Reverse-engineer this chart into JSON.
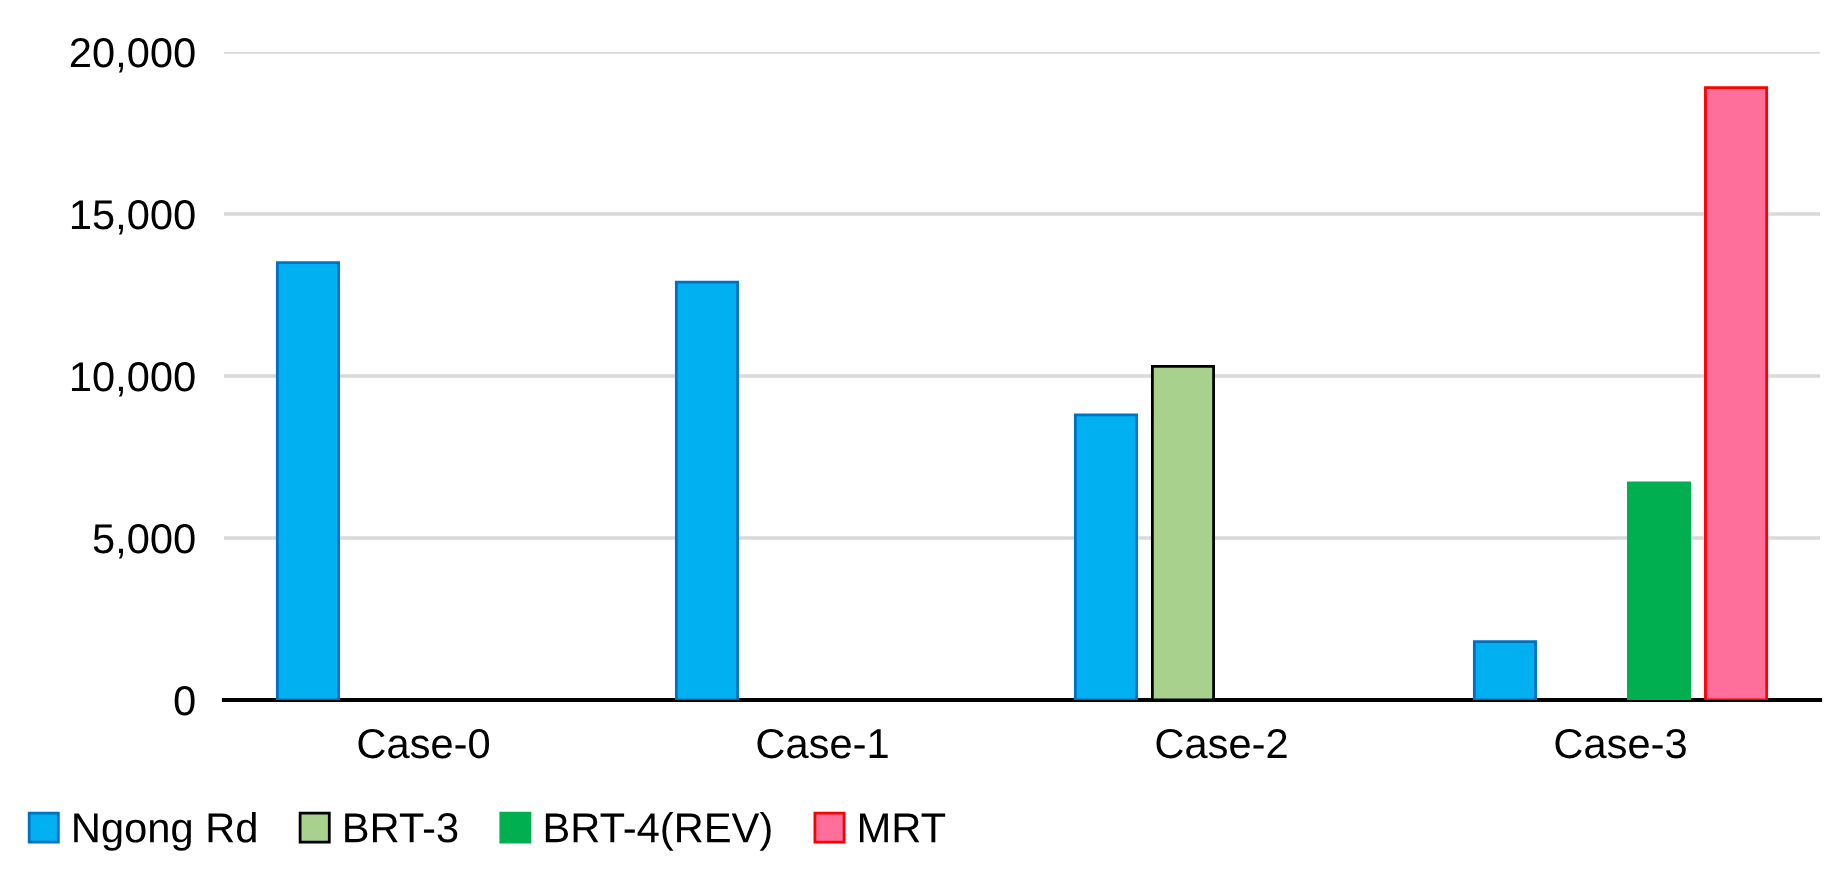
{
  "chart_data": {
    "type": "bar",
    "categories": [
      "Case-0",
      "Case-1",
      "Case-2",
      "Case-3"
    ],
    "series": [
      {
        "name": "Ngong Rd",
        "color": "#00b0f0",
        "values": [
          13500,
          12900,
          8800,
          1800
        ]
      },
      {
        "name": "BRT-3",
        "color": "#a9d18e",
        "values": [
          null,
          null,
          10300,
          null
        ]
      },
      {
        "name": "BRT-4(REV)",
        "color": "#00b050",
        "values": [
          null,
          null,
          null,
          6700
        ]
      },
      {
        "name": "MRT",
        "color": "#ff6f9c",
        "values": [
          null,
          null,
          null,
          18900
        ]
      }
    ],
    "ylim": [
      0,
      20000
    ],
    "yticks": [
      {
        "value": 0,
        "label": "0"
      },
      {
        "value": 5000,
        "label": "5,000"
      },
      {
        "value": 10000,
        "label": "10,000"
      },
      {
        "value": 15000,
        "label": "15,000"
      },
      {
        "value": 20000,
        "label": "20,000"
      }
    ],
    "grid": "y",
    "legend": "bottom left"
  }
}
